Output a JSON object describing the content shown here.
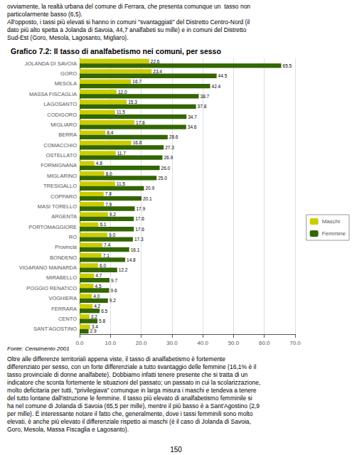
{
  "chart_data": {
    "type": "bar",
    "orientation": "horizontal",
    "title": "Grafico 7.2: Il tasso di analfabetismo nei comuni, per sesso",
    "text_above": "ovviamente, la realtà urbana del comune di Ferrara, che presenta comunque un  tasso non\nparticolarmente basso (6,5).\nAll'opposto, i tassi più elevati si hanno in comuni \"svantaggiati\" del Distretto Centro-Nord (il\ndato più alto spetta a Jolanda di Savoia, 44,7 analfabeti su mille) e in comuni del Distretto\nSud-Est (Goro, Mesola, Lagosanto, Migliaro).",
    "source": "Fonte: Censimento 2001",
    "text_below": "Oltre alle differenze territoriali appena viste, il tasso di analfabetismo è fortemente\ndifferenziato per sesso, con un forte differenziale a tutto svantaggio delle femmine (16,1% è il\ntasso provinciale di donne analfabete). Dobbiamo infatti tenere presente che si tratta di un\nindicatore che sconta fortemente le situazioni del passato; un passato in cui la scolarizzazione,\nmolto deficitaria per tutti, \"privilegiava\" comunque in larga misura i maschi e tendeva a tenere\ndel tutto lontane dall'istruzione le femmine. Il tasso più elevato di analfabetismo femminile si\nha nel comune di Jolanda di Savoia (65,5 per mille), mentre il più basso è a Sant'Agostino (2,9\nper mille). È interessante notare il fatto che, generalmente, dove i tassi femminili sono molto\nelevati, è anche più elevato il differenziale rispetto ai maschi (è il caso di Jolanda di Savoia,\nGoro, Mesola, Massa Fiscaglia e Lagosanto).",
    "page_number": "150",
    "categories": [
      "JOLANDA DI SAVOIA",
      "GORO",
      "MESOLA",
      "MASSA FISCAGLIA",
      "LAGOSANTO",
      "CODIGORO",
      "MIGLIARO",
      "BERRA",
      "COMACCHIO",
      "OSTELLATO",
      "FORMIGNANA",
      "MIGLARINO",
      "TRESIGALLO",
      "COPPARO",
      "MASI TORELLO",
      "ARGENTA",
      "PORTOMAGGIORE",
      "RO",
      "Provincia",
      "BONDENO",
      "VIGARANO MAINARDA",
      "MIRABELLO",
      "POGGIO RENATICO",
      "VOGHIERA",
      "FERRARA",
      "CENTO",
      "SANT'AGOSTINO"
    ],
    "series": [
      {
        "name": "Maschi",
        "color": "#cccc00",
        "values": [
          22.6,
          23.4,
          16.7,
          12.0,
          15.3,
          11.5,
          17.8,
          8.4,
          16.8,
          11.7,
          4.8,
          8.0,
          11.5,
          7.8,
          7.9,
          9.2,
          6.1,
          9.0,
          7.4,
          7.1,
          6.0,
          4.7,
          4.5,
          4.0,
          4.2,
          3.2,
          3.4
        ],
        "value_labels": [
          "22.6",
          "23.4",
          "16.7",
          "12.0",
          "15.3",
          "11.5",
          "17.8",
          "8.4",
          "16.8",
          "11.7",
          "4.8",
          "8.0",
          "11.5",
          "7.8",
          "7.9",
          "9.2",
          "6.1",
          "9.0",
          "7.4",
          "7.1",
          "6.0",
          "4.7",
          "4.5",
          "4.0",
          "4.2",
          "3.2",
          "3.4"
        ]
      },
      {
        "name": "Femmine",
        "color": "#336600",
        "values": [
          65.5,
          44.5,
          42.4,
          38.7,
          37.8,
          34.7,
          34.6,
          28.6,
          27.3,
          26.9,
          26.0,
          25.0,
          20.9,
          20.1,
          17.9,
          17.6,
          17.6,
          17.3,
          16.1,
          14.8,
          12.2,
          9.7,
          9.6,
          9.2,
          6.5,
          5.8,
          2.9
        ],
        "value_labels": [
          "65.5",
          "44.5",
          "42.4",
          "38.7",
          "37.8",
          "34.7",
          "34.6",
          "28.6",
          "27.3",
          "26.9",
          "26.0",
          "25.0",
          "20.9",
          "20.1",
          "17.9",
          "17.6",
          "17.6",
          "17.3",
          "16.1",
          "14.8",
          "12.2",
          "9.7",
          "9.6",
          "9.2",
          "6.5",
          "5.8",
          "2.9"
        ]
      }
    ],
    "xlim": [
      0,
      70
    ],
    "xticks": [
      {
        "value": 0,
        "label": "0.0"
      },
      {
        "value": 10,
        "label": "10.0"
      },
      {
        "value": 20,
        "label": "20.0"
      },
      {
        "value": 30,
        "label": "30.0"
      },
      {
        "value": 40,
        "label": "40.0"
      },
      {
        "value": 50,
        "label": "50.0"
      },
      {
        "value": 60,
        "label": "60.0"
      },
      {
        "value": 70,
        "label": "70.0"
      }
    ],
    "grid": true,
    "legend": "right",
    "data_labels": true
  }
}
